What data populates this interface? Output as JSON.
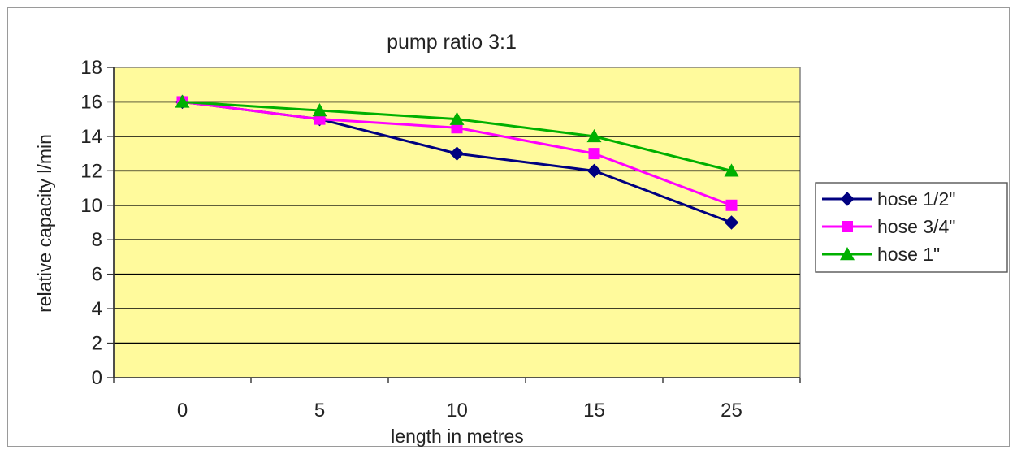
{
  "chart_data": {
    "type": "line",
    "title": "pump ratio 3:1",
    "xlabel": "length in metres",
    "ylabel": "relative capacity l/min",
    "categories": [
      "0",
      "5",
      "10",
      "15",
      "25"
    ],
    "ylim": [
      0,
      18
    ],
    "ytick_step": 2,
    "grid": true,
    "legend_position": "right",
    "plot_background": "#fffa9c",
    "series": [
      {
        "name": "hose 1/2\"",
        "values": [
          16,
          15,
          13,
          12,
          9
        ],
        "color": "#000080",
        "marker": "diamond"
      },
      {
        "name": "hose 3/4\"",
        "values": [
          16,
          15,
          14.5,
          13,
          10
        ],
        "color": "#ff00ff",
        "marker": "square"
      },
      {
        "name": "hose 1\"",
        "values": [
          16,
          15.5,
          15,
          14,
          12
        ],
        "color": "#00b000",
        "marker": "triangle"
      }
    ]
  }
}
